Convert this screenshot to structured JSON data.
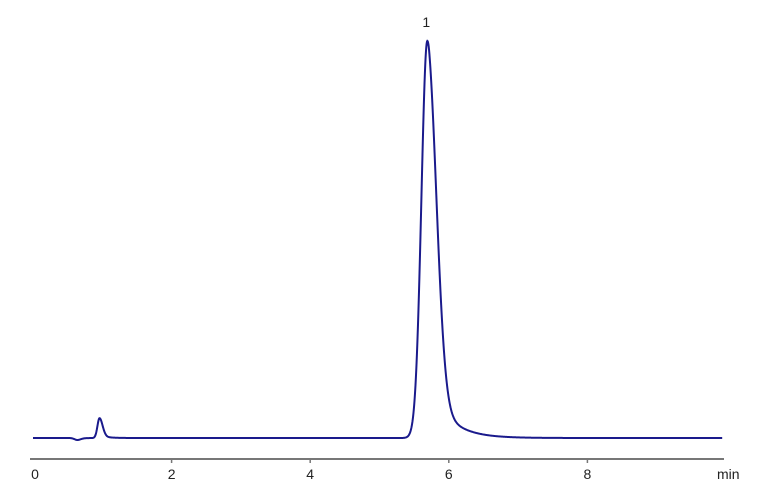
{
  "chart_data": {
    "type": "line",
    "title": "",
    "xlabel": "min",
    "ylabel": "",
    "xlim": [
      0,
      10
    ],
    "ylim": [
      0,
      100
    ],
    "x_ticks": [
      "0",
      "2",
      "4",
      "6",
      "8"
    ],
    "grid": false,
    "line_color": "#1a1a8c",
    "axis_color": "#777777",
    "peaks": [
      {
        "label": "",
        "rt": 0.64,
        "height": -0.5,
        "sigma_left": 0.04,
        "sigma_right": 0.05
      },
      {
        "label": "",
        "rt": 0.96,
        "height": 5.0,
        "sigma_left": 0.03,
        "sigma_right": 0.045
      },
      {
        "label": "1",
        "rt": 5.69,
        "height": 100,
        "sigma_left": 0.085,
        "sigma_right": 0.13
      }
    ]
  }
}
